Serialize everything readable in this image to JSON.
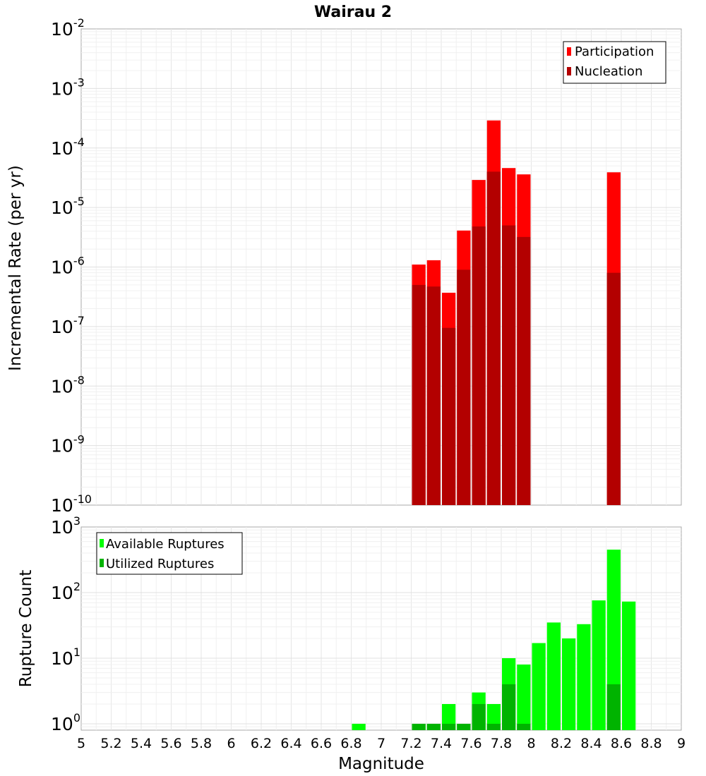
{
  "title": "Wairau 2",
  "xlabel": "Magnitude",
  "x_ticks": [
    "5",
    "5.2",
    "5.4",
    "5.6",
    "5.8",
    "6",
    "6.2",
    "6.4",
    "6.6",
    "6.8",
    "7",
    "7.2",
    "7.4",
    "7.6",
    "7.8",
    "8",
    "8.2",
    "8.4",
    "8.6",
    "8.8",
    "9"
  ],
  "chart_data": [
    {
      "type": "bar",
      "ylabel": "Incremental Rate (per yr)",
      "ylabel_parts": {
        "prefix": "Incremental Rate (per ",
        "unit": "yr",
        "suffix": ")"
      },
      "yscale": "log",
      "xlim": [
        5,
        9
      ],
      "ylim": [
        1e-10,
        0.01
      ],
      "y_tick_exponents": [
        -10,
        -9,
        -8,
        -7,
        -6,
        -5,
        -4,
        -3,
        -2
      ],
      "bar_width": 0.1,
      "grid": true,
      "legend_position": "top-right",
      "legend": [
        "Participation",
        "Nucleation"
      ],
      "colors": {
        "Participation": "#ff0000",
        "Nucleation": "#b30000"
      },
      "series": [
        {
          "name": "Participation",
          "x": [
            7.25,
            7.35,
            7.45,
            7.55,
            7.65,
            7.75,
            7.85,
            7.95,
            8.55
          ],
          "values": [
            1.1e-06,
            1.3e-06,
            3.7e-07,
            4.1e-06,
            2.9e-05,
            0.00029,
            4.6e-05,
            3.6e-05,
            3.9e-05
          ]
        },
        {
          "name": "Nucleation",
          "x": [
            7.25,
            7.35,
            7.45,
            7.55,
            7.65,
            7.75,
            7.85,
            7.95,
            8.55
          ],
          "values": [
            5e-07,
            4.7e-07,
            9.5e-08,
            9e-07,
            4.8e-06,
            4e-05,
            5e-06,
            3.2e-06,
            8e-07
          ]
        }
      ]
    },
    {
      "type": "bar",
      "ylabel": "Rupture Count",
      "yscale": "log",
      "xlim": [
        5,
        9
      ],
      "ylim": [
        0.8,
        1000
      ],
      "y_tick_exponents": [
        0,
        1,
        2,
        3
      ],
      "bar_width": 0.1,
      "grid": true,
      "legend_position": "top-left",
      "legend": [
        "Available Ruptures",
        "Utilized Ruptures"
      ],
      "colors": {
        "Available Ruptures": "#00ff00",
        "Utilized Ruptures": "#00b300"
      },
      "series": [
        {
          "name": "Available Ruptures",
          "x": [
            6.85,
            7.25,
            7.35,
            7.45,
            7.55,
            7.65,
            7.75,
            7.85,
            7.95,
            8.05,
            8.15,
            8.25,
            8.35,
            8.45,
            8.55,
            8.65
          ],
          "values": [
            1,
            1,
            1,
            2,
            1,
            3,
            2,
            10,
            8,
            17,
            35,
            20,
            33,
            76,
            451,
            73
          ]
        },
        {
          "name": "Utilized Ruptures",
          "x": [
            7.25,
            7.35,
            7.45,
            7.55,
            7.65,
            7.75,
            7.85,
            7.95,
            8.55
          ],
          "values": [
            1,
            1,
            1,
            1,
            2,
            1,
            4,
            1,
            4
          ]
        }
      ]
    }
  ]
}
